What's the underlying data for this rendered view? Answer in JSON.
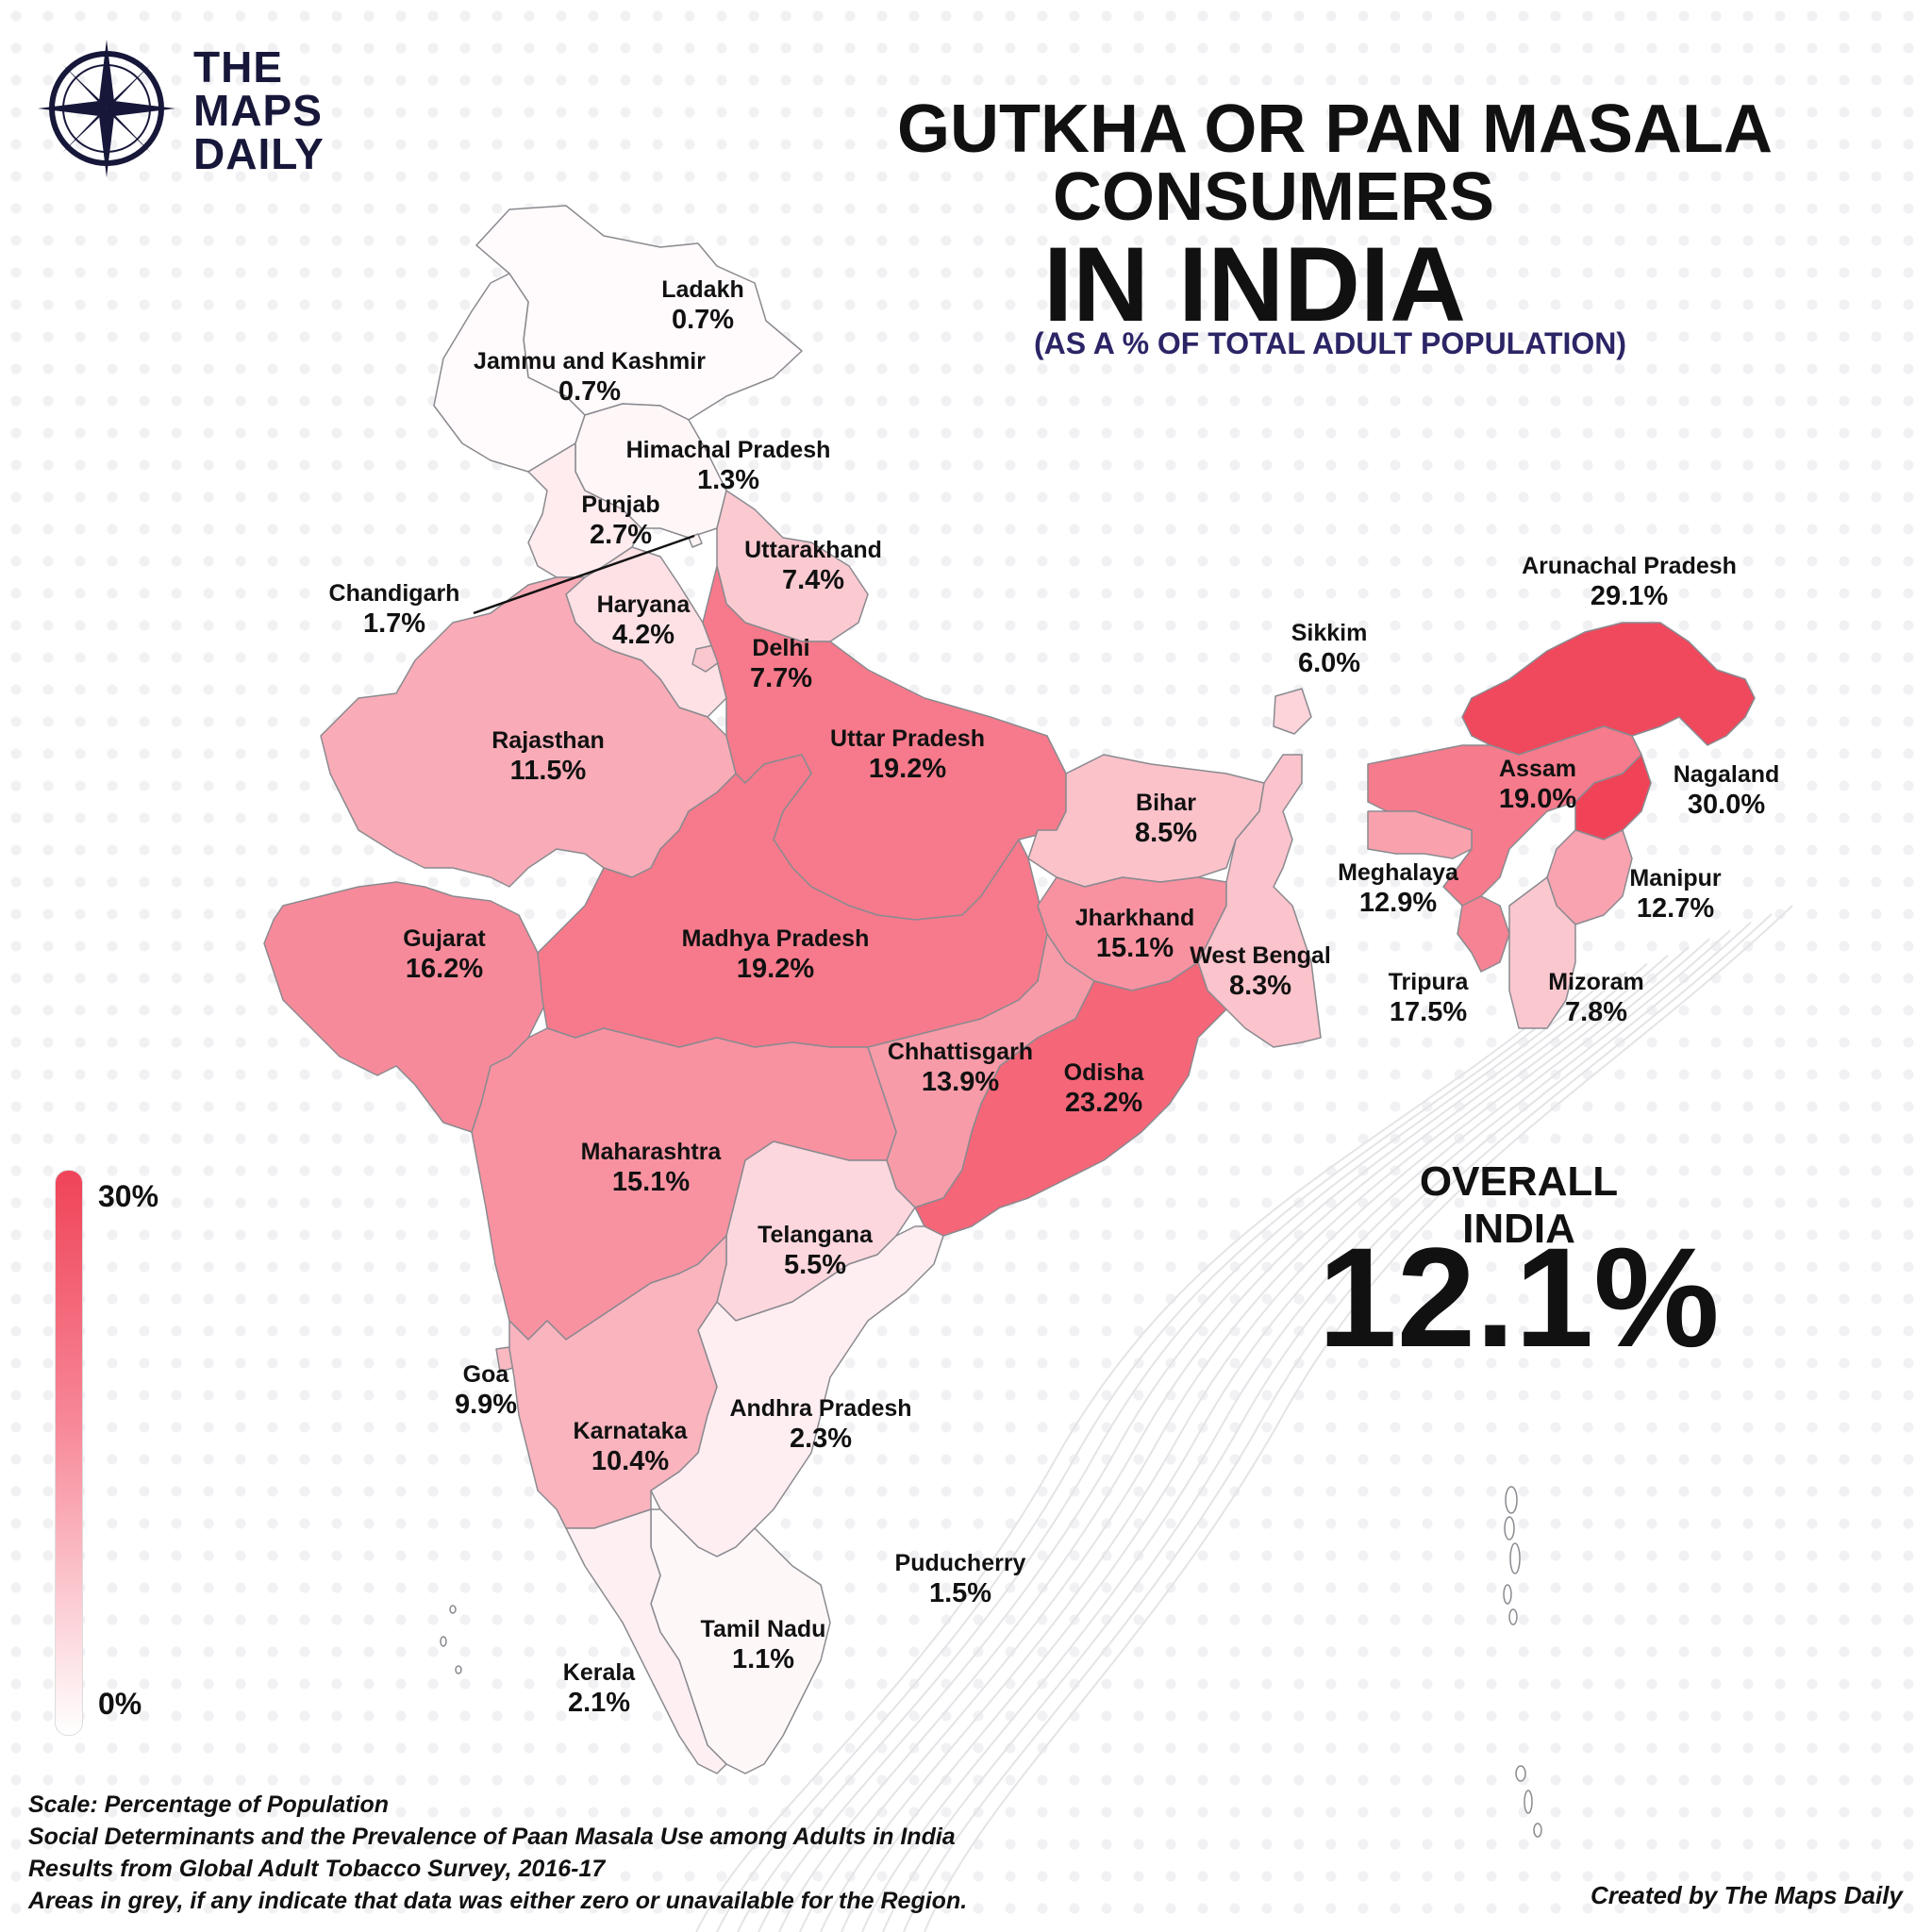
{
  "logo": {
    "lines": [
      "THE",
      "MAPS",
      "DAILY"
    ],
    "icon": "compass-rose-icon"
  },
  "title": {
    "line1": "GUTKHA OR PAN MASALA",
    "line2": "CONSUMERS",
    "line3": "IN INDIA"
  },
  "subtitle": "(AS A % OF TOTAL ADULT POPULATION)",
  "overall": {
    "label": "OVERALL INDIA",
    "value": "12.1%"
  },
  "legend": {
    "max_label": "30%",
    "min_label": "0%",
    "min_value": 0,
    "max_value": 30,
    "color_low": "#ffffff",
    "color_mid": "#f78898",
    "color_high": "#f04358"
  },
  "regions": [
    {
      "name": "Ladakh",
      "value": "0.7%",
      "pct": 0.7
    },
    {
      "name": "Jammu and Kashmir",
      "value": "0.7%",
      "pct": 0.7
    },
    {
      "name": "Himachal Pradesh",
      "value": "1.3%",
      "pct": 1.3
    },
    {
      "name": "Punjab",
      "value": "2.7%",
      "pct": 2.7
    },
    {
      "name": "Chandigarh",
      "value": "1.7%",
      "pct": 1.7
    },
    {
      "name": "Uttarakhand",
      "value": "7.4%",
      "pct": 7.4
    },
    {
      "name": "Haryana",
      "value": "4.2%",
      "pct": 4.2
    },
    {
      "name": "Delhi",
      "value": "7.7%",
      "pct": 7.7
    },
    {
      "name": "Rajasthan",
      "value": "11.5%",
      "pct": 11.5
    },
    {
      "name": "Uttar Pradesh",
      "value": "19.2%",
      "pct": 19.2
    },
    {
      "name": "Bihar",
      "value": "8.5%",
      "pct": 8.5
    },
    {
      "name": "Sikkim",
      "value": "6.0%",
      "pct": 6.0
    },
    {
      "name": "Arunachal Pradesh",
      "value": "29.1%",
      "pct": 29.1
    },
    {
      "name": "Assam",
      "value": "19.0%",
      "pct": 19.0
    },
    {
      "name": "Nagaland",
      "value": "30.0%",
      "pct": 30.0
    },
    {
      "name": "Meghalaya",
      "value": "12.9%",
      "pct": 12.9
    },
    {
      "name": "Manipur",
      "value": "12.7%",
      "pct": 12.7
    },
    {
      "name": "Tripura",
      "value": "17.5%",
      "pct": 17.5
    },
    {
      "name": "Mizoram",
      "value": "7.8%",
      "pct": 7.8
    },
    {
      "name": "Gujarat",
      "value": "16.2%",
      "pct": 16.2
    },
    {
      "name": "Madhya Pradesh",
      "value": "19.2%",
      "pct": 19.2
    },
    {
      "name": "Jharkhand",
      "value": "15.1%",
      "pct": 15.1
    },
    {
      "name": "West Bengal",
      "value": "8.3%",
      "pct": 8.3
    },
    {
      "name": "Chhattisgarh",
      "value": "13.9%",
      "pct": 13.9
    },
    {
      "name": "Odisha",
      "value": "23.2%",
      "pct": 23.2
    },
    {
      "name": "Maharashtra",
      "value": "15.1%",
      "pct": 15.1
    },
    {
      "name": "Telangana",
      "value": "5.5%",
      "pct": 5.5
    },
    {
      "name": "Goa",
      "value": "9.9%",
      "pct": 9.9
    },
    {
      "name": "Andhra Pradesh",
      "value": "2.3%",
      "pct": 2.3
    },
    {
      "name": "Karnataka",
      "value": "10.4%",
      "pct": 10.4
    },
    {
      "name": "Puducherry",
      "value": "1.5%",
      "pct": 1.5
    },
    {
      "name": "Tamil Nadu",
      "value": "1.1%",
      "pct": 1.1
    },
    {
      "name": "Kerala",
      "value": "2.1%",
      "pct": 2.1
    },
    {
      "name": "Andaman and Nicobar Islands",
      "pct": 0
    },
    {
      "name": "Lakshadweep",
      "pct": 0
    }
  ],
  "footer": {
    "line1": "Scale: Percentage of Population",
    "line2": "Social Determinants and the Prevalence of Paan Masala Use among Adults in India",
    "line3": "Results from Global Adult Tobacco Survey, 2016-17",
    "line4": "Areas in grey, if any indicate that data was either zero or unavailable for the Region."
  },
  "credit": "Created by The Maps Daily"
}
